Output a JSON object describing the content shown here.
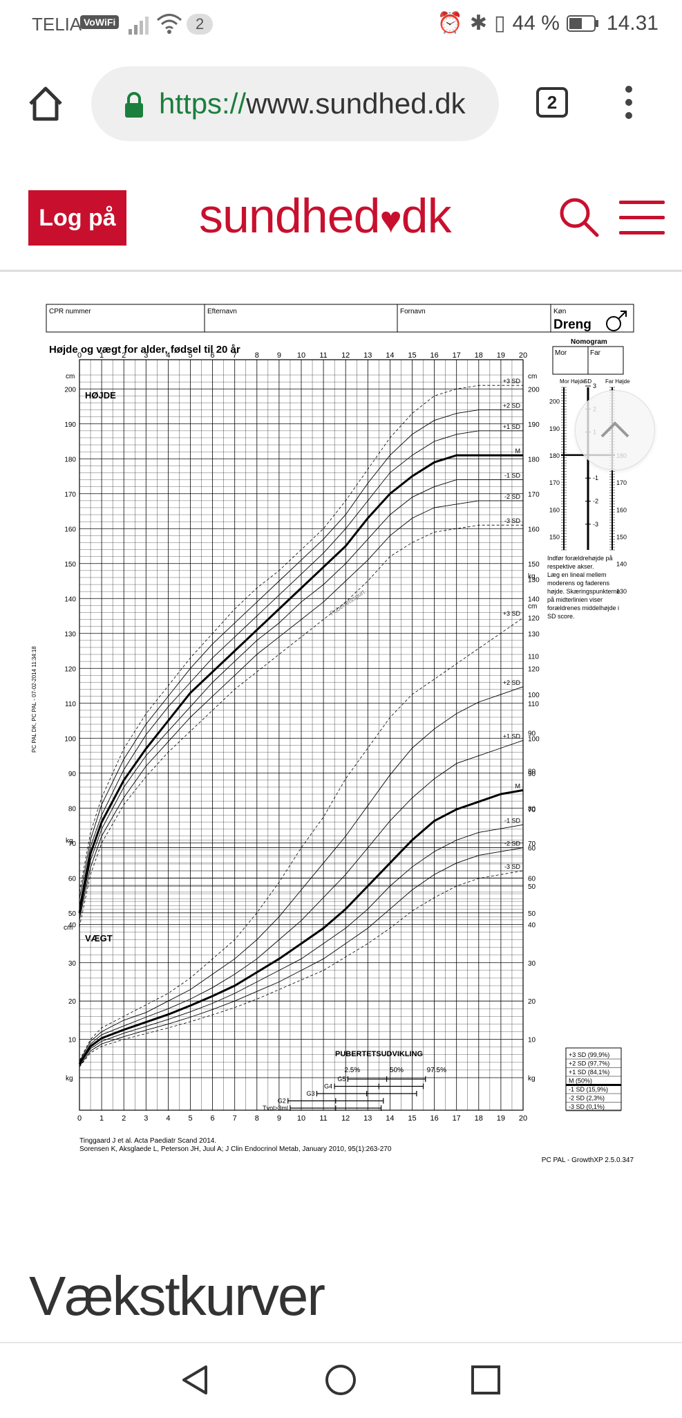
{
  "status_bar": {
    "carrier": "TELIA",
    "vowifi": "VoWiFi",
    "notification_count": "2",
    "battery": "44 %",
    "time": "14.31"
  },
  "browser": {
    "url_scheme": "https://",
    "url_host": "www.sundhed.dk",
    "tab_count": "2"
  },
  "site": {
    "login_label": "Log på",
    "logo_text": "sundhed",
    "logo_suffix": "dk"
  },
  "chart_header": {
    "cpr_label": "CPR nummer",
    "surname_label": "Efternavn",
    "firstname_label": "Fornavn",
    "sex_label": "Køn",
    "sex_value": "Dreng",
    "title": "Højde og vægt for alder, fødsel til 20 år",
    "nomogram_title": "Nomogram",
    "mother": "Mor",
    "father": "Far",
    "mother_height": "Mor Højde",
    "sd": "SD",
    "father_height": "Far Højde",
    "height_label": "HØJDE",
    "weight_label": "VÆGT",
    "puberty_label": "PUBERTETSUDVIKLING",
    "puberty_spurt": "Pubertetsspurt",
    "nomogram_note": [
      "Indfør forældrehøjde på",
      "respektive akser.",
      "Læg en lineal mellem",
      "moderens og faderens",
      "højde. Skæringspunkterne",
      "på midterlinien viser",
      "forældrenes middelhøjde i",
      "SD score."
    ],
    "side_text": "PC PAL DK, PC PAL - 07-02-2014 11:34:18",
    "refs": [
      "Tinggaard J et al. Acta Paediatr Scand 2014.",
      "Sorensen K, Aksglaede L, Peterson JH, Juul A; J Clin Endocrinol Metab, January 2010, 95(1):263-270"
    ],
    "footer_id": "PC PAL - GrowthXP 2.5.0.347",
    "legend": [
      "+3 SD (99,9%)",
      "+2 SD (97,7%)",
      "+1 SD (84,1%)",
      "M (50%)",
      "-1 SD (15,9%)",
      "-2 SD (2,3%)",
      "-3 SD (0,1%)"
    ],
    "puberty_rows": [
      "G5",
      "G4",
      "G3",
      "G2",
      "Tvol>3ml"
    ],
    "puberty_pct": [
      "2.5%",
      "50%",
      "97.5%"
    ],
    "unit_cm": "cm",
    "unit_kg": "kg"
  },
  "chart_data": {
    "type": "line",
    "title": "Højde og vægt for alder, fødsel til 20 år",
    "xlabel": "",
    "x_ticks": [
      0,
      1,
      2,
      3,
      4,
      5,
      6,
      7,
      8,
      9,
      10,
      11,
      12,
      13,
      14,
      15,
      16,
      17,
      18,
      19,
      20
    ],
    "x": [
      0,
      0.5,
      1,
      2,
      3,
      4,
      5,
      6,
      7,
      8,
      9,
      10,
      11,
      12,
      13,
      14,
      15,
      16,
      17,
      18,
      19,
      20
    ],
    "height_axis": {
      "unit": "cm",
      "ylim": [
        45,
        205
      ],
      "ticks": [
        50,
        60,
        70,
        80,
        90,
        100,
        110,
        120,
        130,
        140,
        150,
        160,
        170,
        180,
        190,
        200
      ]
    },
    "weight_axis": {
      "unit": "kg",
      "ylim": [
        0,
        135
      ],
      "ticks": [
        10,
        20,
        30,
        40,
        50,
        60,
        70,
        80,
        90,
        100,
        110,
        120,
        130
      ]
    },
    "height_series": [
      {
        "name": "+3 SD",
        "values": [
          56,
          73,
          83,
          97,
          107,
          115,
          123,
          130,
          137,
          143,
          148,
          154,
          160,
          168,
          177,
          186,
          193,
          198,
          200,
          201,
          201,
          201
        ]
      },
      {
        "name": "+2 SD",
        "values": [
          54,
          71,
          81,
          94,
          104,
          112,
          120,
          127,
          133,
          139,
          145,
          151,
          157,
          164,
          173,
          181,
          187,
          191,
          193,
          194,
          194,
          194
        ]
      },
      {
        "name": "+1 SD",
        "values": [
          52,
          69,
          78,
          91,
          101,
          109,
          116,
          123,
          129,
          135,
          141,
          147,
          153,
          160,
          168,
          176,
          181,
          185,
          187,
          188,
          188,
          188
        ]
      },
      {
        "name": "M",
        "values": [
          50,
          67,
          76,
          88,
          97,
          105,
          113,
          119,
          125,
          131,
          137,
          143,
          149,
          155,
          163,
          170,
          175,
          179,
          181,
          181,
          181,
          181
        ]
      },
      {
        "name": "-1 SD",
        "values": [
          49,
          65,
          74,
          86,
          95,
          102,
          109,
          116,
          122,
          128,
          133,
          139,
          144,
          150,
          157,
          164,
          169,
          172,
          174,
          174,
          174,
          174
        ]
      },
      {
        "name": "-2 SD",
        "values": [
          48,
          63,
          72,
          83,
          92,
          99,
          106,
          112,
          118,
          124,
          129,
          134,
          139,
          145,
          151,
          158,
          163,
          166,
          167,
          168,
          168,
          168
        ]
      },
      {
        "name": "-3 SD",
        "values": [
          46,
          61,
          70,
          81,
          89,
          96,
          102,
          108,
          114,
          119,
          124,
          129,
          134,
          139,
          145,
          152,
          156,
          159,
          160,
          161,
          161,
          161
        ]
      }
    ],
    "weight_series": [
      {
        "name": "+3 SD",
        "values": [
          4.5,
          10,
          13,
          16,
          19,
          22,
          26,
          31,
          36,
          43,
          51,
          60,
          68,
          78,
          86,
          94,
          100,
          104,
          108,
          112,
          116,
          120
        ]
      },
      {
        "name": "+2 SD",
        "values": [
          4.2,
          9.5,
          12,
          15,
          17,
          20,
          23,
          27,
          31,
          36,
          42,
          49,
          56,
          63,
          71,
          79,
          86,
          91,
          95,
          98,
          100,
          102
        ]
      },
      {
        "name": "+1 SD",
        "values": [
          3.9,
          8.8,
          11.2,
          13.5,
          15.8,
          18,
          20.5,
          23.5,
          27,
          31,
          36,
          41,
          47,
          53,
          60,
          67,
          73,
          78,
          82,
          84,
          86,
          88
        ]
      },
      {
        "name": "M",
        "values": [
          3.6,
          8.2,
          10.3,
          12.5,
          14.5,
          16.5,
          18.8,
          21.3,
          24,
          27.5,
          31,
          35,
          39,
          44,
          50,
          56,
          62,
          67,
          70,
          72,
          74,
          75
        ]
      },
      {
        "name": "-1 SD",
        "values": [
          3.3,
          7.6,
          9.5,
          11.6,
          13.4,
          15.2,
          17.2,
          19.4,
          22,
          25,
          28,
          31,
          35,
          39,
          44,
          50,
          55,
          59,
          62,
          64,
          65,
          66
        ]
      },
      {
        "name": "-2 SD",
        "values": [
          3.0,
          7.0,
          8.8,
          10.7,
          12.4,
          14,
          15.8,
          17.8,
          20,
          22.5,
          25,
          28,
          31,
          35,
          39,
          44,
          49,
          53,
          56,
          58,
          59,
          60
        ]
      },
      {
        "name": "-3 SD",
        "values": [
          2.8,
          6.5,
          8.2,
          10,
          11.5,
          13,
          14.6,
          16.4,
          18.3,
          20.5,
          23,
          25.5,
          28,
          31.5,
          35,
          39,
          43.5,
          47,
          50,
          52,
          53,
          54
        ]
      }
    ],
    "puberty_ranges": [
      {
        "name": "G5",
        "x": [
          12.1,
          15.6
        ]
      },
      {
        "name": "G4",
        "x": [
          11.5,
          15.5
        ]
      },
      {
        "name": "G3",
        "x": [
          10.7,
          15.2
        ]
      },
      {
        "name": "G2",
        "x": [
          9.4,
          13.7
        ]
      },
      {
        "name": "Tvol>3ml",
        "x": [
          9.5,
          13.6
        ]
      }
    ],
    "nomogram": {
      "height_ticks": [
        150,
        160,
        170,
        180,
        190,
        200
      ],
      "sd_ticks": [
        -3,
        -2,
        -1,
        0,
        1,
        2,
        3
      ]
    },
    "grid": true
  },
  "page": {
    "title": "Vækstkurver"
  }
}
